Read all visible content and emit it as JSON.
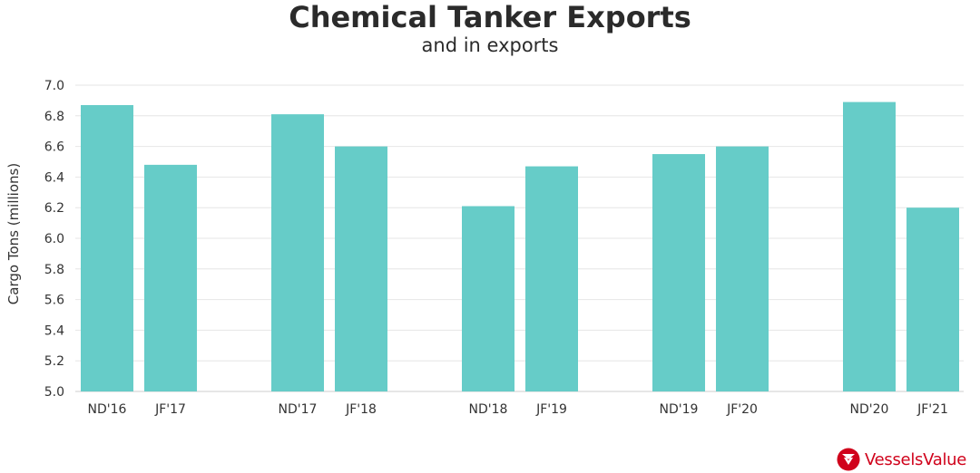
{
  "chart_data": {
    "type": "bar",
    "title": "Chemical Tanker Exports",
    "subtitle": "and in exports",
    "ylabel": "Cargo Tons (millions)",
    "xlabel": "",
    "ylim": [
      5.0,
      7.0
    ],
    "yticks": [
      "5.0",
      "5.2",
      "5.4",
      "5.6",
      "5.8",
      "6.0",
      "6.2",
      "6.4",
      "6.6",
      "6.8",
      "7.0"
    ],
    "categories": [
      "ND'16",
      "JF'17",
      "ND'17",
      "JF'18",
      "ND'18",
      "JF'19",
      "ND'19",
      "JF'20",
      "ND'20",
      "JF'21"
    ],
    "values": [
      6.87,
      6.48,
      6.81,
      6.6,
      6.21,
      6.47,
      6.55,
      6.6,
      6.89,
      6.2
    ],
    "grid": true,
    "legend": "none",
    "bar_color": "#66ccc8"
  },
  "brand": {
    "name": "VesselsValue",
    "color": "#d0021b",
    "icon": "vesselsvalue-logo-icon"
  }
}
